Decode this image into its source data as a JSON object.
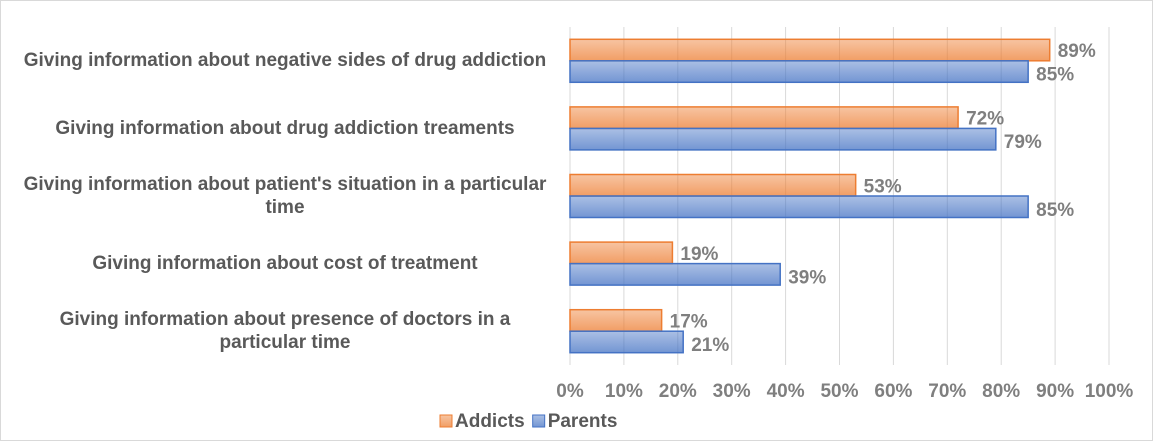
{
  "chart_data": {
    "type": "barh",
    "categories": [
      "Giving information about negative sides of drug addiction",
      "Giving information about drug addiction treaments",
      "Giving information about patient's situation in a particular time",
      "Giving information about cost of treatment",
      "Giving information about presence of doctors in a particular time"
    ],
    "series": [
      {
        "name": "Addicts",
        "color": "#ed7d31",
        "values": [
          89,
          72,
          53,
          19,
          17
        ],
        "value_labels": [
          "89%",
          "72%",
          "53%",
          "19%",
          "17%"
        ]
      },
      {
        "name": "Parents",
        "color": "#4472c4",
        "values": [
          85,
          79,
          85,
          39,
          21
        ],
        "value_labels": [
          "85%",
          "79%",
          "85%",
          "39%",
          "21%"
        ]
      }
    ],
    "xlim": [
      0,
      100
    ],
    "xticks": [
      {
        "value": 0,
        "label": "0%"
      },
      {
        "value": 10,
        "label": "10%"
      },
      {
        "value": 20,
        "label": "20%"
      },
      {
        "value": 30,
        "label": "30%"
      },
      {
        "value": 40,
        "label": "40%"
      },
      {
        "value": 50,
        "label": "50%"
      },
      {
        "value": 60,
        "label": "60%"
      },
      {
        "value": 70,
        "label": "70%"
      },
      {
        "value": 80,
        "label": "80%"
      },
      {
        "value": 90,
        "label": "90%"
      },
      {
        "value": 100,
        "label": "100%"
      }
    ],
    "grid": true,
    "legend": "bottom"
  }
}
